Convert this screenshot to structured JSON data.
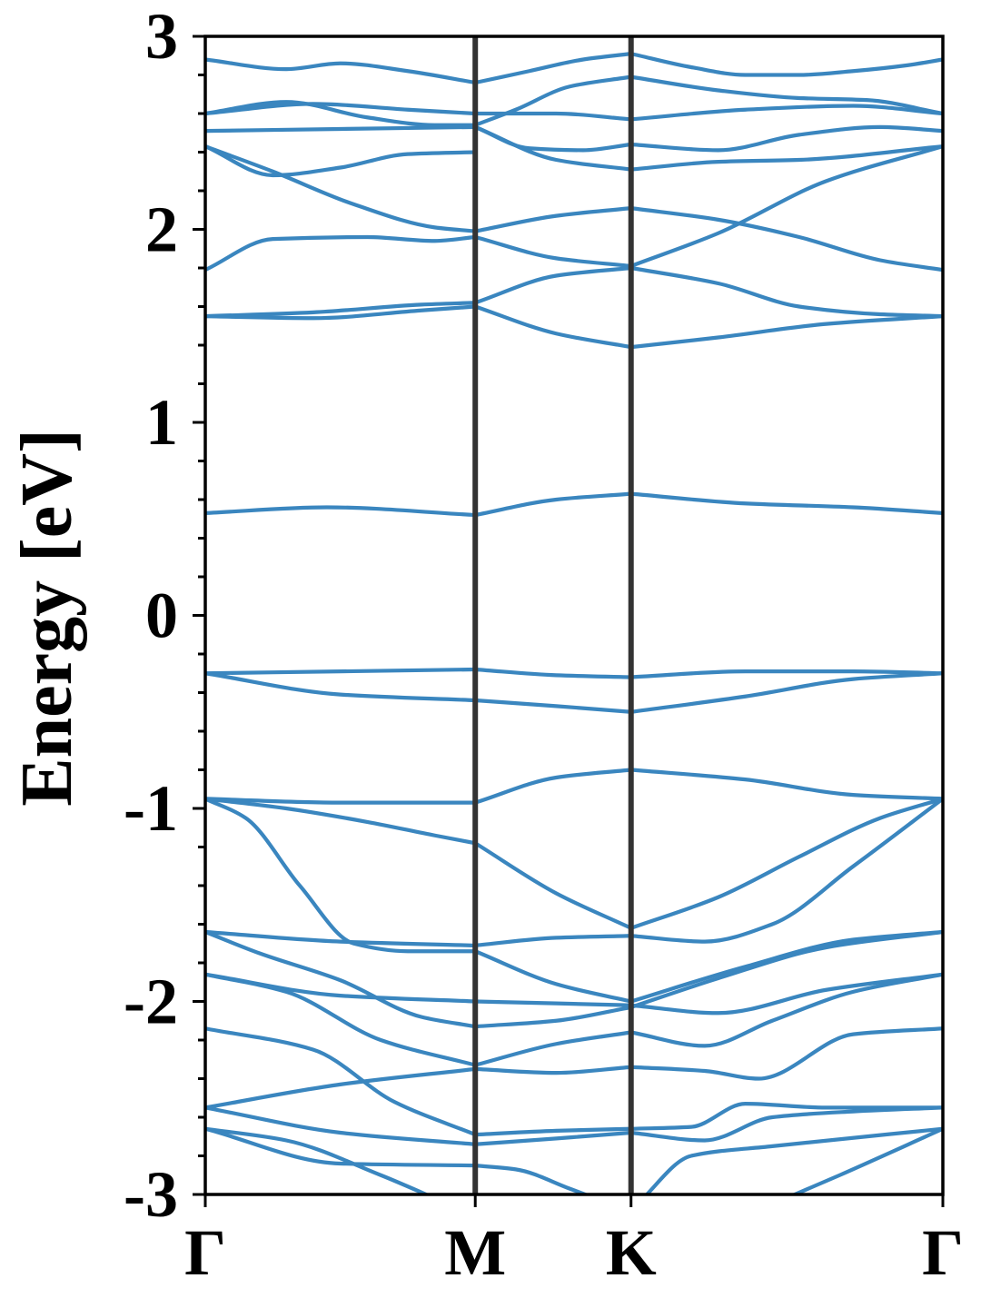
{
  "chart_data": {
    "type": "line",
    "title": "",
    "xlabel": "",
    "ylabel": "Energy [eV]",
    "ylim": [
      -3,
      3
    ],
    "grid": false,
    "legend": "none",
    "x_range": [
      0,
      2.732
    ],
    "high_symmetry_points": [
      {
        "label": "Γ",
        "x": 0
      },
      {
        "label": "M",
        "x": 1.0
      },
      {
        "label": "K",
        "x": 1.577
      },
      {
        "label": "Γ",
        "x": 2.732
      }
    ],
    "y_ticks": [
      {
        "value": 3,
        "label": "3"
      },
      {
        "value": 2,
        "label": "2"
      },
      {
        "value": 1,
        "label": "1"
      },
      {
        "value": 0,
        "label": "0"
      },
      {
        "value": -1,
        "label": "-1"
      },
      {
        "value": -2,
        "label": "-2"
      },
      {
        "value": -3,
        "label": "-3"
      }
    ],
    "y_minor_step": 0.2,
    "colors": {
      "band": "#3a86bf",
      "divider": "#333333",
      "axis": "#000000"
    },
    "series": [
      {
        "x": [
          0,
          0.3,
          0.5,
          0.75,
          1.0
        ],
        "values": [
          2.88,
          2.83,
          2.86,
          2.82,
          2.76
        ]
      },
      {
        "x": [
          1.0,
          1.2,
          1.4,
          1.577
        ],
        "values": [
          2.76,
          2.82,
          2.88,
          2.91
        ]
      },
      {
        "x": [
          1.577,
          1.8,
          2.0,
          2.2,
          2.4,
          2.6,
          2.732
        ],
        "values": [
          2.91,
          2.84,
          2.8,
          2.8,
          2.82,
          2.85,
          2.88
        ]
      },
      {
        "x": [
          1.0,
          1.15,
          1.35,
          1.577
        ],
        "values": [
          2.54,
          2.62,
          2.74,
          2.79
        ]
      },
      {
        "x": [
          1.577,
          1.9,
          2.2,
          2.45,
          2.732
        ],
        "values": [
          2.79,
          2.72,
          2.68,
          2.67,
          2.6
        ]
      },
      {
        "x": [
          0,
          0.4,
          0.75,
          1.0
        ],
        "values": [
          2.6,
          2.65,
          2.62,
          2.6
        ]
      },
      {
        "x": [
          1.0,
          1.3,
          1.577
        ],
        "values": [
          2.6,
          2.6,
          2.57
        ]
      },
      {
        "x": [
          1.577,
          2.0,
          2.4,
          2.732
        ],
        "values": [
          2.57,
          2.62,
          2.64,
          2.6
        ]
      },
      {
        "x": [
          0,
          0.3,
          0.6,
          0.85,
          1.0
        ],
        "values": [
          2.6,
          2.66,
          2.58,
          2.54,
          2.54
        ]
      },
      {
        "x": [
          0,
          0.5,
          1.0
        ],
        "values": [
          2.51,
          2.52,
          2.53
        ]
      },
      {
        "x": [
          1.0,
          1.3,
          1.577
        ],
        "values": [
          2.53,
          2.36,
          2.31
        ]
      },
      {
        "x": [
          1.577,
          1.9,
          2.2,
          2.732
        ],
        "values": [
          2.31,
          2.35,
          2.36,
          2.43
        ]
      },
      {
        "x": [
          1.0,
          1.2,
          1.4,
          1.577
        ],
        "values": [
          2.53,
          2.42,
          2.41,
          2.44
        ]
      },
      {
        "x": [
          1.577,
          1.9,
          2.2,
          2.5,
          2.732
        ],
        "values": [
          2.44,
          2.41,
          2.49,
          2.53,
          2.51
        ]
      },
      {
        "x": [
          0,
          0.25,
          0.5,
          0.75,
          1.0
        ],
        "values": [
          2.43,
          2.28,
          2.32,
          2.39,
          2.4
        ]
      },
      {
        "x": [
          0,
          0.25,
          0.55,
          0.85,
          1.0
        ],
        "values": [
          2.43,
          2.3,
          2.13,
          2.01,
          1.99
        ]
      },
      {
        "x": [
          1.0,
          1.3,
          1.577
        ],
        "values": [
          1.99,
          2.07,
          2.11
        ]
      },
      {
        "x": [
          1.577,
          1.9,
          2.2,
          2.5,
          2.732
        ],
        "values": [
          2.11,
          2.05,
          1.96,
          1.84,
          1.79
        ]
      },
      {
        "x": [
          0,
          0.25,
          0.6,
          0.85,
          1.0
        ],
        "values": [
          1.79,
          1.95,
          1.96,
          1.94,
          1.96
        ]
      },
      {
        "x": [
          1.0,
          1.3,
          1.577
        ],
        "values": [
          1.96,
          1.85,
          1.81
        ]
      },
      {
        "x": [
          1.577,
          1.9,
          2.3,
          2.732
        ],
        "values": [
          1.81,
          1.98,
          2.25,
          2.43
        ]
      },
      {
        "x": [
          0,
          0.4,
          0.8,
          1.0
        ],
        "values": [
          1.55,
          1.57,
          1.61,
          1.62
        ]
      },
      {
        "x": [
          1.0,
          1.3,
          1.577
        ],
        "values": [
          1.62,
          1.76,
          1.8
        ]
      },
      {
        "x": [
          1.577,
          1.9,
          2.2,
          2.5,
          2.732
        ],
        "values": [
          1.8,
          1.72,
          1.6,
          1.56,
          1.55
        ]
      },
      {
        "x": [
          0,
          0.4,
          0.8,
          1.0
        ],
        "values": [
          1.55,
          1.54,
          1.58,
          1.6
        ]
      },
      {
        "x": [
          1.0,
          1.3,
          1.577
        ],
        "values": [
          1.6,
          1.46,
          1.39
        ]
      },
      {
        "x": [
          1.577,
          1.9,
          2.3,
          2.732
        ],
        "values": [
          1.39,
          1.44,
          1.51,
          1.55
        ]
      },
      {
        "x": [
          0,
          0.45,
          1.0
        ],
        "values": [
          0.53,
          0.56,
          0.52
        ]
      },
      {
        "x": [
          1.0,
          1.3,
          1.577
        ],
        "values": [
          0.52,
          0.6,
          0.63
        ]
      },
      {
        "x": [
          1.577,
          2.0,
          2.4,
          2.732
        ],
        "values": [
          0.63,
          0.58,
          0.56,
          0.53
        ]
      },
      {
        "x": [
          0,
          0.5,
          1.0
        ],
        "values": [
          -0.3,
          -0.29,
          -0.28
        ]
      },
      {
        "x": [
          1.0,
          1.3,
          1.577
        ],
        "values": [
          -0.28,
          -0.31,
          -0.32
        ]
      },
      {
        "x": [
          1.577,
          2.0,
          2.4,
          2.732
        ],
        "values": [
          -0.32,
          -0.29,
          -0.29,
          -0.3
        ]
      },
      {
        "x": [
          0,
          0.5,
          1.0
        ],
        "values": [
          -0.3,
          -0.41,
          -0.44
        ]
      },
      {
        "x": [
          1.0,
          1.3,
          1.577
        ],
        "values": [
          -0.44,
          -0.47,
          -0.5
        ]
      },
      {
        "x": [
          1.577,
          2.0,
          2.4,
          2.732
        ],
        "values": [
          -0.5,
          -0.42,
          -0.33,
          -0.3
        ]
      },
      {
        "x": [
          0,
          0.5,
          1.0
        ],
        "values": [
          -0.95,
          -0.97,
          -0.97
        ]
      },
      {
        "x": [
          1.0,
          1.3,
          1.577
        ],
        "values": [
          -0.97,
          -0.84,
          -0.8
        ]
      },
      {
        "x": [
          1.577,
          2.0,
          2.4,
          2.732
        ],
        "values": [
          -0.8,
          -0.85,
          -0.93,
          -0.95
        ]
      },
      {
        "x": [
          0,
          0.3,
          0.6,
          0.85,
          1.0
        ],
        "values": [
          -0.95,
          -1.0,
          -1.07,
          -1.14,
          -1.18
        ]
      },
      {
        "x": [
          1.0,
          1.3,
          1.577
        ],
        "values": [
          -1.18,
          -1.44,
          -1.62
        ]
      },
      {
        "x": [
          1.577,
          1.9,
          2.2,
          2.5,
          2.732
        ],
        "values": [
          -1.62,
          -1.46,
          -1.25,
          -1.05,
          -0.95
        ]
      },
      {
        "x": [
          0,
          0.15,
          0.35,
          0.55,
          0.75,
          1.0
        ],
        "values": [
          -0.95,
          -1.05,
          -1.4,
          -1.7,
          -1.74,
          -1.74
        ]
      },
      {
        "x": [
          1.0,
          1.3,
          1.577
        ],
        "values": [
          -1.74,
          -1.91,
          -2.0
        ]
      },
      {
        "x": [
          1.577,
          2.0,
          2.4,
          2.732
        ],
        "values": [
          -2.0,
          -1.82,
          -1.68,
          -1.64
        ]
      },
      {
        "x": [
          0,
          0.5,
          1.0
        ],
        "values": [
          -1.64,
          -1.69,
          -1.71
        ]
      },
      {
        "x": [
          1.0,
          1.3,
          1.577
        ],
        "values": [
          -1.71,
          -1.67,
          -1.66
        ]
      },
      {
        "x": [
          1.577,
          1.85,
          2.1,
          2.4,
          2.732
        ],
        "values": [
          -1.66,
          -1.69,
          -1.6,
          -1.3,
          -0.95
        ]
      },
      {
        "x": [
          0,
          0.2,
          0.5,
          0.8,
          1.0
        ],
        "values": [
          -1.64,
          -1.75,
          -1.89,
          -2.08,
          -2.13
        ]
      },
      {
        "x": [
          1.0,
          1.3,
          1.577
        ],
        "values": [
          -2.13,
          -2.1,
          -2.03
        ]
      },
      {
        "x": [
          1.577,
          1.9,
          2.3,
          2.732
        ],
        "values": [
          -2.03,
          -1.88,
          -1.72,
          -1.64
        ]
      },
      {
        "x": [
          0,
          0.5,
          1.0
        ],
        "values": [
          -1.86,
          -1.97,
          -2.0
        ]
      },
      {
        "x": [
          1.0,
          1.3,
          1.577
        ],
        "values": [
          -2.0,
          -2.01,
          -2.02
        ]
      },
      {
        "x": [
          1.577,
          1.9,
          2.3,
          2.732
        ],
        "values": [
          -2.02,
          -2.06,
          -1.94,
          -1.86
        ]
      },
      {
        "x": [
          0,
          0.3,
          0.65,
          1.0
        ],
        "values": [
          -1.86,
          -1.95,
          -2.2,
          -2.33
        ]
      },
      {
        "x": [
          1.0,
          1.3,
          1.577
        ],
        "values": [
          -2.33,
          -2.22,
          -2.16
        ]
      },
      {
        "x": [
          1.577,
          1.85,
          2.1,
          2.4,
          2.732
        ],
        "values": [
          -2.16,
          -2.23,
          -2.1,
          -1.95,
          -1.86
        ]
      },
      {
        "x": [
          0,
          0.4,
          0.7,
          1.0
        ],
        "values": [
          -2.14,
          -2.25,
          -2.52,
          -2.69
        ]
      },
      {
        "x": [
          1.0,
          1.3,
          1.577
        ],
        "values": [
          -2.69,
          -2.67,
          -2.66
        ]
      },
      {
        "x": [
          1.577,
          1.8,
          2.0,
          2.3,
          2.732
        ],
        "values": [
          -2.66,
          -2.65,
          -2.53,
          -2.55,
          -2.55
        ]
      },
      {
        "x": [
          0,
          0.5,
          1.0
        ],
        "values": [
          -2.55,
          -2.43,
          -2.35
        ]
      },
      {
        "x": [
          1.0,
          1.3,
          1.577
        ],
        "values": [
          -2.35,
          -2.37,
          -2.34
        ]
      },
      {
        "x": [
          1.577,
          1.85,
          2.05,
          2.4,
          2.732
        ],
        "values": [
          -2.34,
          -2.36,
          -2.4,
          -2.17,
          -2.14
        ]
      },
      {
        "x": [
          0,
          0.5,
          1.0
        ],
        "values": [
          -2.55,
          -2.68,
          -2.74
        ]
      },
      {
        "x": [
          1.0,
          1.3,
          1.577
        ],
        "values": [
          -2.74,
          -2.71,
          -2.68
        ]
      },
      {
        "x": [
          1.577,
          1.85,
          2.1,
          2.4,
          2.732
        ],
        "values": [
          -2.68,
          -2.72,
          -2.6,
          -2.57,
          -2.55
        ]
      },
      {
        "x": [
          0,
          0.5,
          1.0
        ],
        "values": [
          -2.66,
          -2.84,
          -2.85
        ]
      },
      {
        "x": [
          1.0,
          1.15,
          1.35,
          1.5
        ],
        "values": [
          -2.85,
          -2.87,
          -2.97,
          -3.05
        ]
      },
      {
        "x": [
          1.6,
          1.8,
          2.1,
          2.732
        ],
        "values": [
          -3.05,
          -2.8,
          -2.75,
          -2.66
        ]
      },
      {
        "x": [
          0,
          0.3,
          0.65,
          0.9
        ],
        "values": [
          -2.66,
          -2.72,
          -2.9,
          -3.05
        ]
      },
      {
        "x": [
          2.1,
          2.35,
          2.732
        ],
        "values": [
          -3.05,
          -2.9,
          -2.66
        ]
      }
    ]
  }
}
